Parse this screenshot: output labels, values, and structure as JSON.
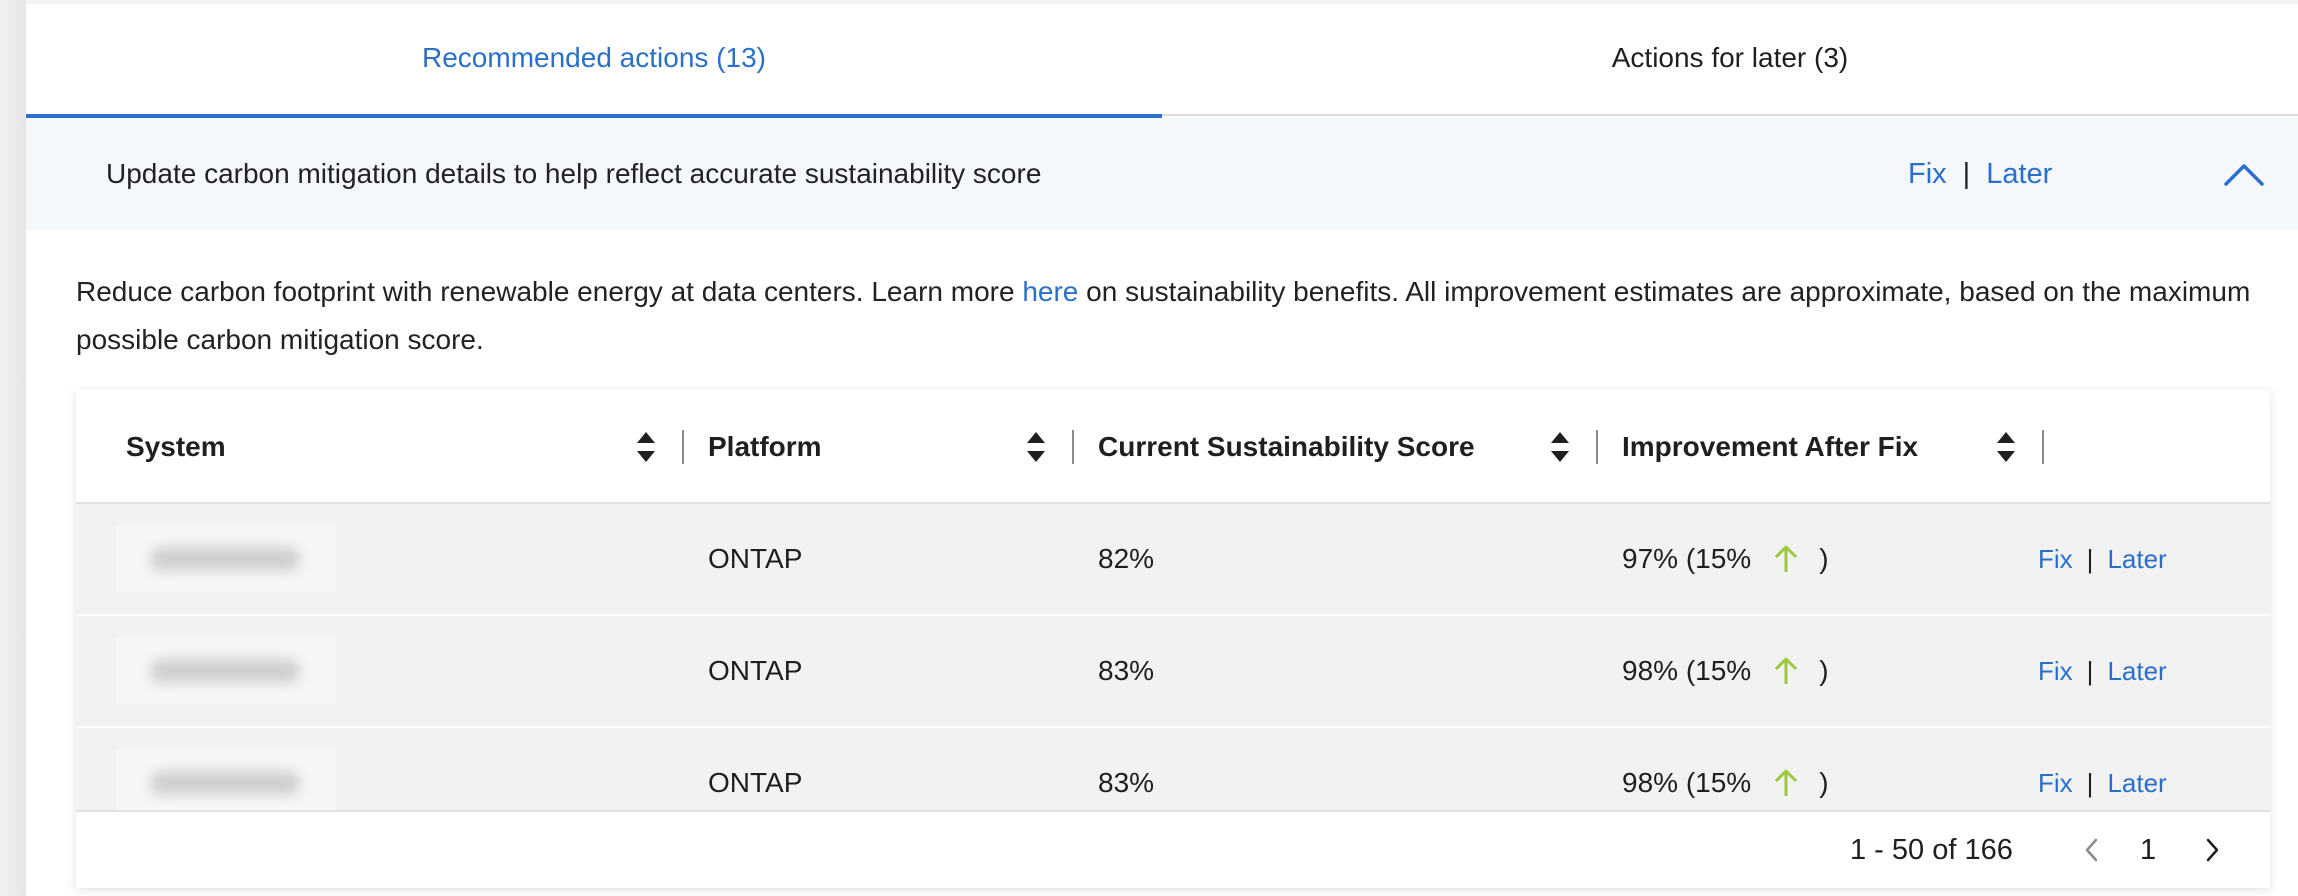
{
  "tabs": [
    {
      "label": "Recommended actions (13)",
      "active": true
    },
    {
      "label": "Actions for later (3)",
      "active": false
    }
  ],
  "banner": {
    "text": "Update carbon mitigation details to help reflect accurate sustainability score",
    "fix_label": "Fix",
    "separator": "|",
    "later_label": "Later",
    "collapse_icon": "chevron-up-icon"
  },
  "description": {
    "part1": "Reduce carbon footprint with renewable energy at data centers. Learn more ",
    "link": "here",
    "part2": " on sustainability benefits. All improvement estimates are approximate, based on the maximum possible carbon mitigation score."
  },
  "table": {
    "columns": [
      {
        "label": "System"
      },
      {
        "label": "Platform"
      },
      {
        "label": "Current Sustainability Score"
      },
      {
        "label": "Improvement After Fix"
      }
    ],
    "rows": [
      {
        "system": "",
        "platform": "ONTAP",
        "current": "82%",
        "improvement_value": "97% (15%",
        "improvement_close": ")",
        "fix": "Fix",
        "later": "Later"
      },
      {
        "system": "",
        "platform": "ONTAP",
        "current": "83%",
        "improvement_value": "98% (15%",
        "improvement_close": ")",
        "fix": "Fix",
        "later": "Later"
      },
      {
        "system": "",
        "platform": "ONTAP",
        "current": "83%",
        "improvement_value": "98% (15%",
        "improvement_close": ")",
        "fix": "Fix",
        "later": "Later"
      }
    ],
    "row_separator": "|"
  },
  "pagination": {
    "range_text": "1 - 50 of 166",
    "current_page": "1"
  },
  "colors": {
    "accent": "#2a6fc9",
    "up_arrow": "#9dc73d",
    "banner_bg": "#f4f8fd"
  }
}
